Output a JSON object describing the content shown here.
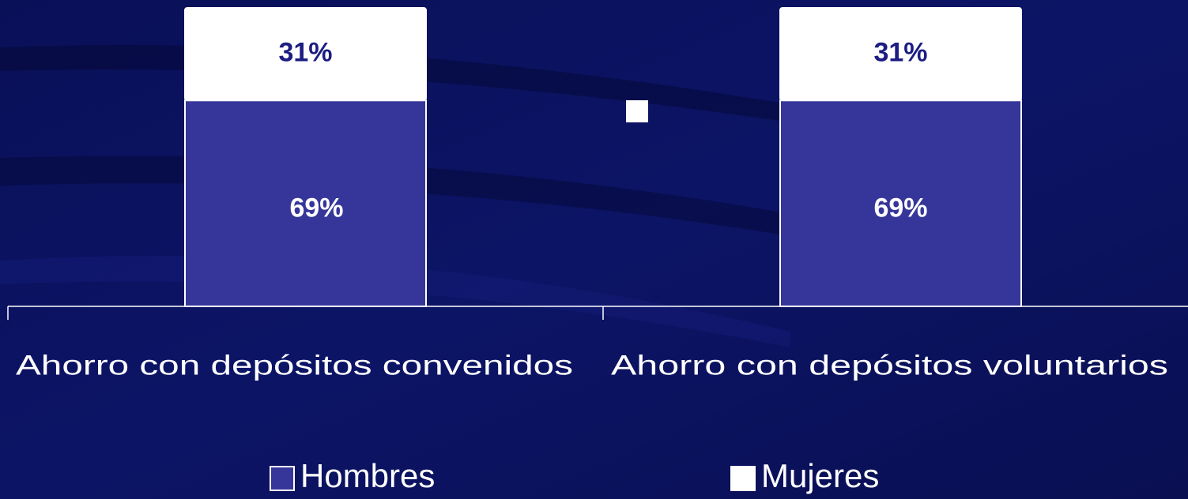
{
  "chart_data": {
    "type": "stacked_bar",
    "categories": [
      "Ahorro con depósitos convenidos",
      "Ahorro con depósitos voluntarios"
    ],
    "series": [
      {
        "name": "Hombres",
        "color": "#36369a",
        "values": [
          69,
          69
        ],
        "value_labels": [
          "69%",
          "69%"
        ]
      },
      {
        "name": "Mujeres",
        "color": "#ffffff",
        "values": [
          31,
          31
        ],
        "value_labels": [
          "31%",
          "31%"
        ]
      }
    ]
  }
}
